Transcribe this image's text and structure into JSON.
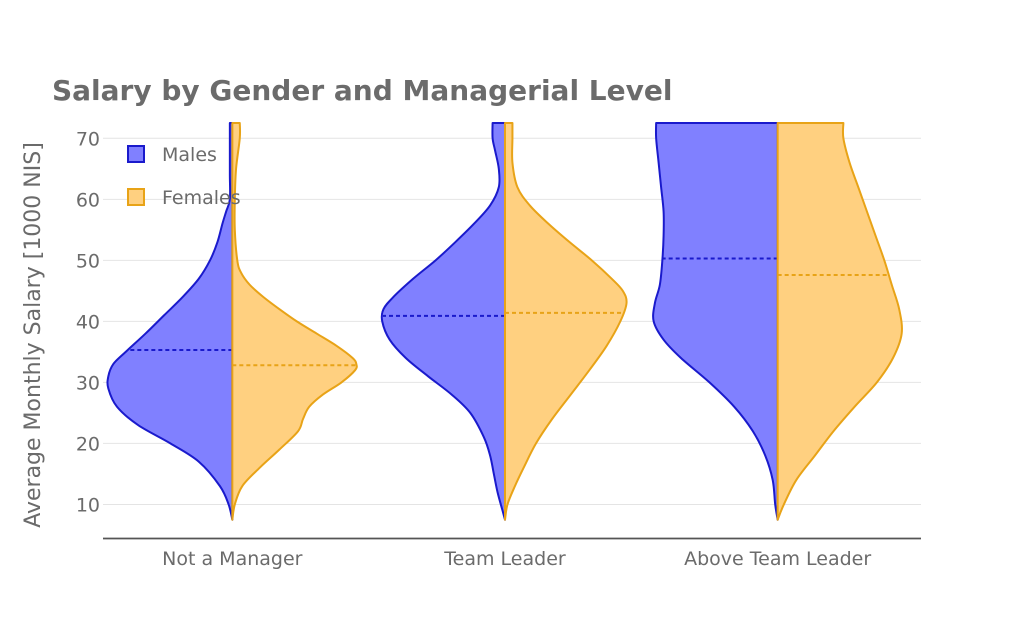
{
  "chart_data": {
    "type": "violin",
    "title": "Salary by Gender and Managerial Level",
    "xlabel": "",
    "ylabel": "Average Monthly Salary [1000 NIS]",
    "categories": [
      "Not a Manager",
      "Team Leader",
      "Above Team Leader"
    ],
    "yticks": [
      10,
      20,
      30,
      40,
      50,
      60,
      70
    ],
    "ylim": [
      4.5,
      73
    ],
    "grid": true,
    "legend": {
      "placement": "top-left"
    },
    "series": [
      {
        "name": "Males",
        "side": "negative",
        "fill": "#8080ff",
        "stroke": "#1a1acc",
        "data": [
          {
            "category": "Not a Manager",
            "mean": 35.3,
            "range": [
              7.5,
              72.5
            ],
            "profile": [
              [
                7.5,
                0
              ],
              [
                10,
                0.03
              ],
              [
                13,
                0.1
              ],
              [
                17,
                0.27
              ],
              [
                20,
                0.5
              ],
              [
                23,
                0.76
              ],
              [
                26,
                0.93
              ],
              [
                29,
                1.0
              ],
              [
                31,
                1.0
              ],
              [
                33,
                0.96
              ],
              [
                35,
                0.86
              ],
              [
                38,
                0.7
              ],
              [
                41,
                0.55
              ],
              [
                44,
                0.4
              ],
              [
                47,
                0.27
              ],
              [
                50,
                0.18
              ],
              [
                53,
                0.12
              ],
              [
                56,
                0.08
              ],
              [
                58,
                0.05
              ],
              [
                60,
                0.02
              ],
              [
                64,
                0.02
              ],
              [
                68,
                0.02
              ],
              [
                72.5,
                0.02
              ]
            ]
          },
          {
            "category": "Team Leader",
            "mean": 40.9,
            "range": [
              7.5,
              72.5
            ],
            "profile": [
              [
                7.5,
                0
              ],
              [
                9,
                0.02
              ],
              [
                12,
                0.06
              ],
              [
                15,
                0.09
              ],
              [
                18,
                0.12
              ],
              [
                21,
                0.17
              ],
              [
                25,
                0.28
              ],
              [
                28,
                0.43
              ],
              [
                31,
                0.62
              ],
              [
                34,
                0.8
              ],
              [
                37,
                0.93
              ],
              [
                40,
                0.99
              ],
              [
                42,
                0.98
              ],
              [
                44,
                0.9
              ],
              [
                47,
                0.74
              ],
              [
                50,
                0.56
              ],
              [
                53,
                0.4
              ],
              [
                56,
                0.25
              ],
              [
                59,
                0.12
              ],
              [
                62,
                0.05
              ],
              [
                65,
                0.05
              ],
              [
                68,
                0.08
              ],
              [
                70,
                0.1
              ],
              [
                72.5,
                0.1
              ]
            ]
          },
          {
            "category": "Above Team Leader",
            "mean": 50.3,
            "range": [
              7.5,
              72.5
            ],
            "profile": [
              [
                7.5,
                0
              ],
              [
                10,
                0.02
              ],
              [
                14,
                0.04
              ],
              [
                18,
                0.1
              ],
              [
                22,
                0.2
              ],
              [
                26,
                0.35
              ],
              [
                30,
                0.55
              ],
              [
                34,
                0.78
              ],
              [
                37,
                0.92
              ],
              [
                40,
                1.0
              ],
              [
                43,
                0.99
              ],
              [
                46,
                0.95
              ],
              [
                50,
                0.93
              ],
              [
                54,
                0.92
              ],
              [
                58,
                0.92
              ],
              [
                62,
                0.94
              ],
              [
                66,
                0.96
              ],
              [
                70,
                0.98
              ],
              [
                72.5,
                0.98
              ]
            ]
          }
        ]
      },
      {
        "name": "Females",
        "side": "positive",
        "fill": "#ffd080",
        "stroke": "#e8a317",
        "data": [
          {
            "category": "Not a Manager",
            "mean": 32.8,
            "range": [
              7.5,
              72.5
            ],
            "profile": [
              [
                7.5,
                0
              ],
              [
                10,
                0.02
              ],
              [
                13,
                0.08
              ],
              [
                16,
                0.22
              ],
              [
                19,
                0.38
              ],
              [
                22,
                0.53
              ],
              [
                24,
                0.57
              ],
              [
                26,
                0.62
              ],
              [
                28,
                0.73
              ],
              [
                30,
                0.88
              ],
              [
                32,
                0.99
              ],
              [
                33,
                1.0
              ],
              [
                34,
                0.97
              ],
              [
                36,
                0.84
              ],
              [
                38,
                0.68
              ],
              [
                40,
                0.52
              ],
              [
                42,
                0.38
              ],
              [
                44,
                0.25
              ],
              [
                46,
                0.14
              ],
              [
                48,
                0.07
              ],
              [
                50,
                0.04
              ],
              [
                55,
                0.02
              ],
              [
                60,
                0.02
              ],
              [
                65,
                0.03
              ],
              [
                70,
                0.06
              ],
              [
                72.5,
                0.06
              ]
            ]
          },
          {
            "category": "Team Leader",
            "mean": 41.4,
            "range": [
              7.5,
              72.5
            ],
            "profile": [
              [
                7.5,
                0
              ],
              [
                10,
                0.02
              ],
              [
                13,
                0.08
              ],
              [
                16,
                0.15
              ],
              [
                20,
                0.25
              ],
              [
                24,
                0.38
              ],
              [
                28,
                0.53
              ],
              [
                32,
                0.68
              ],
              [
                36,
                0.82
              ],
              [
                40,
                0.93
              ],
              [
                43,
                0.98
              ],
              [
                45,
                0.95
              ],
              [
                47,
                0.86
              ],
              [
                50,
                0.7
              ],
              [
                53,
                0.52
              ],
              [
                56,
                0.35
              ],
              [
                59,
                0.2
              ],
              [
                62,
                0.1
              ],
              [
                66,
                0.06
              ],
              [
                70,
                0.06
              ],
              [
                72.5,
                0.06
              ]
            ]
          },
          {
            "category": "Above Team Leader",
            "mean": 47.6,
            "range": [
              7.5,
              72.5
            ],
            "profile": [
              [
                7.5,
                0
              ],
              [
                10,
                0.05
              ],
              [
                14,
                0.15
              ],
              [
                18,
                0.3
              ],
              [
                22,
                0.45
              ],
              [
                26,
                0.62
              ],
              [
                30,
                0.8
              ],
              [
                34,
                0.93
              ],
              [
                38,
                1.0
              ],
              [
                42,
                0.98
              ],
              [
                46,
                0.92
              ],
              [
                50,
                0.86
              ],
              [
                54,
                0.79
              ],
              [
                58,
                0.72
              ],
              [
                62,
                0.65
              ],
              [
                66,
                0.58
              ],
              [
                70,
                0.53
              ],
              [
                72.5,
                0.53
              ]
            ]
          }
        ]
      }
    ]
  }
}
